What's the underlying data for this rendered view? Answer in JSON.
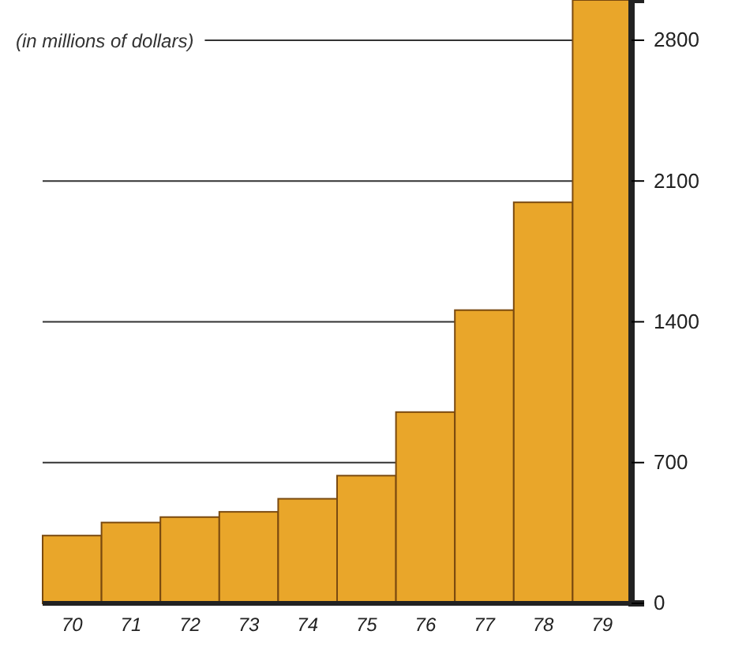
{
  "chart_data": {
    "type": "bar",
    "ylabel": "(in millions of dollars)",
    "categories": [
      "70",
      "71",
      "72",
      "73",
      "74",
      "75",
      "76",
      "77",
      "78",
      "79"
    ],
    "values": [
      337,
      402,
      429,
      455,
      520,
      635,
      951,
      1458,
      1994,
      3000
    ],
    "color": "#e9a62a",
    "ylim": [
      0,
      3000
    ],
    "yticks": [
      0,
      700,
      1400,
      2100,
      2800
    ],
    "grid": "y"
  }
}
